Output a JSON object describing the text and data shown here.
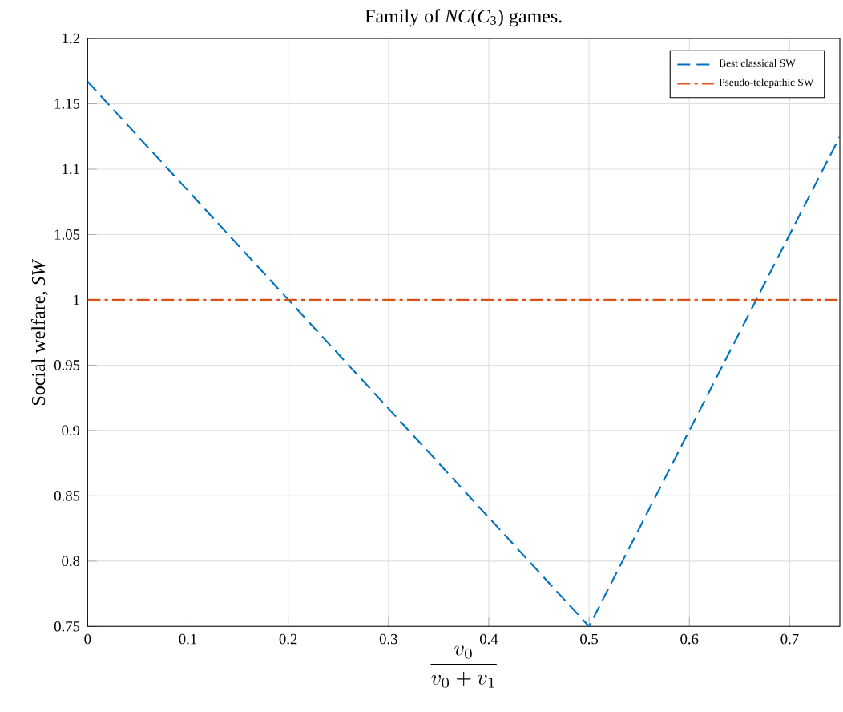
{
  "chart_data": {
    "type": "line",
    "title": "Family of *NC*(*C*$_{3}$) games.",
    "xlabel": "\\frac{v_0}{v_0+v_1}",
    "ylabel": "Social welfare, *SW*",
    "series": [
      {
        "name": "Best classical SW",
        "color": "#0072bd",
        "line_style": "dashed",
        "x": [
          0,
          0.5,
          0.75
        ],
        "values": [
          1.167,
          0.75,
          1.125
        ]
      },
      {
        "name": "Pseudo-telepathic SW",
        "color": "#d95319",
        "line_style": "dashdot",
        "x": [
          0,
          0.75
        ],
        "values": [
          1,
          1
        ]
      }
    ],
    "xlim": [
      0,
      0.75
    ],
    "ylim": [
      0.75,
      1.2
    ],
    "xticks": [
      0,
      0.1,
      0.2,
      0.3,
      0.4,
      0.5,
      0.6,
      0.7
    ],
    "yticks": [
      0.75,
      0.8,
      0.85,
      0.9,
      0.95,
      1,
      1.05,
      1.1,
      1.15,
      1.2
    ],
    "grid": true,
    "legend": "top right",
    "marker": "none"
  }
}
